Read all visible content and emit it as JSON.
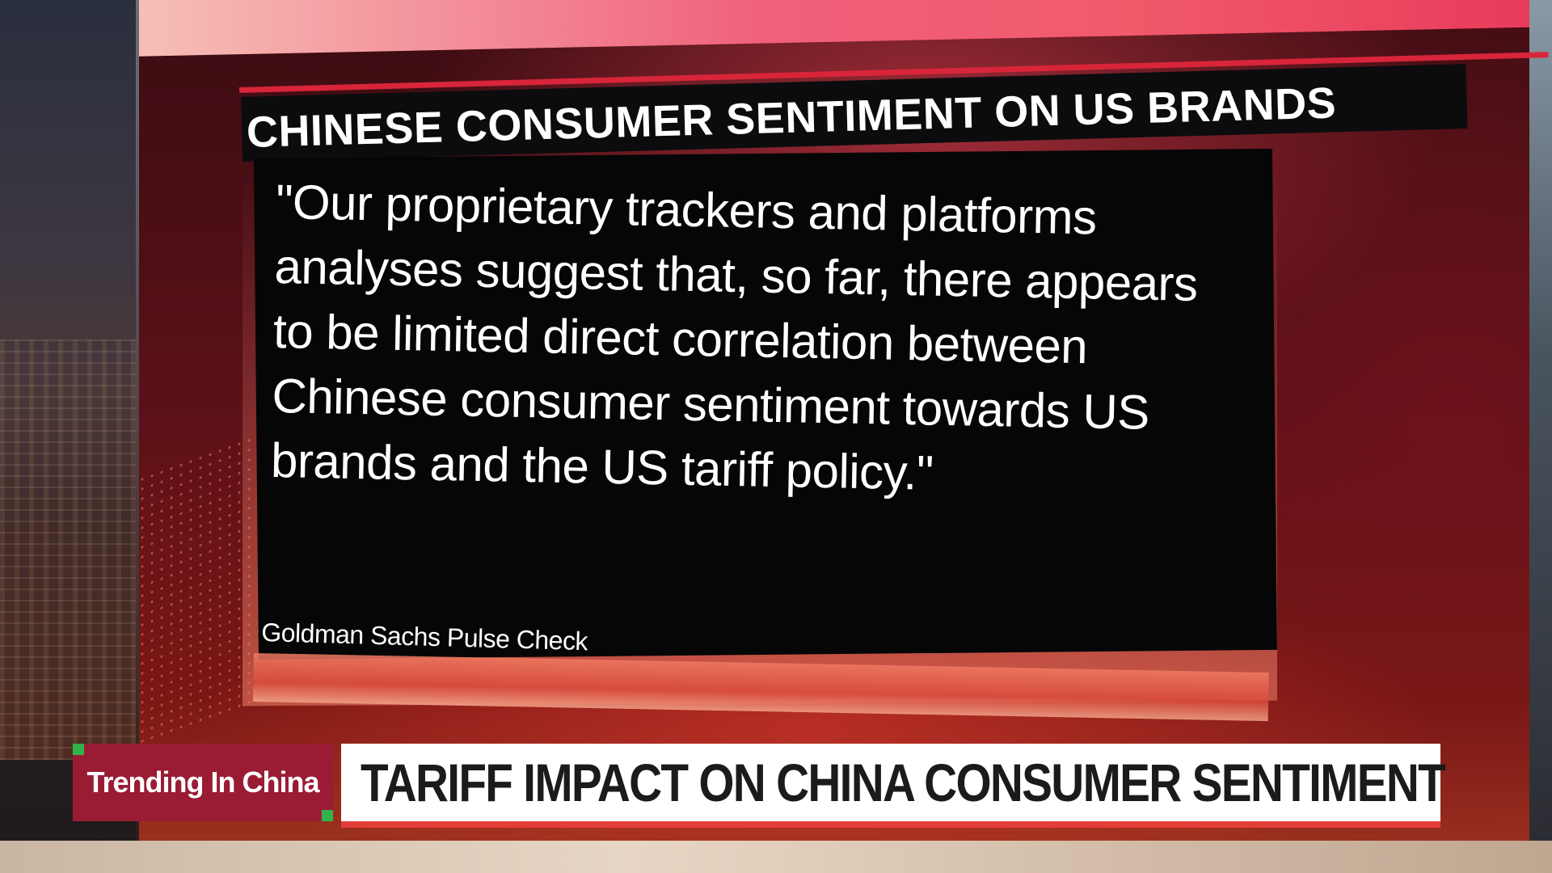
{
  "panel": {
    "title": "CHINESE CONSUMER SENTIMENT ON US BRANDS",
    "quote": "\"Our proprietary trackers and platforms analyses suggest that, so far, there appears to be limited direct correlation between Chinese consumer sentiment towards US brands and the US tariff policy.\"",
    "source": "Goldman Sachs Pulse Check"
  },
  "lower_third": {
    "tag": "Trending In China",
    "headline": "TARIFF IMPACT ON CHINA CONSUMER SENTIMENT"
  },
  "colors": {
    "accent_red": "#d8253a",
    "tag_background": "#9a1c34",
    "tag_corner_green": "#2fb34a",
    "headline_underline": "#e33e3a"
  }
}
